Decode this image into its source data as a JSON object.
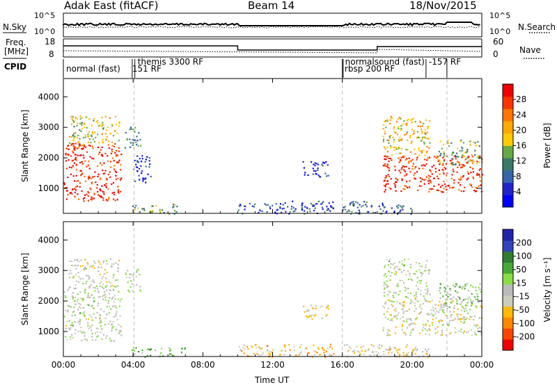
{
  "header": {
    "radar": "Adak East (fitACF)",
    "beam": "Beam 14",
    "date": "18/Nov/2015"
  },
  "strip_labels": {
    "nsky": "N.Sky",
    "nsearch": "N.Search",
    "freq": "Freq.",
    "freq_unit": "[MHz]",
    "nave": "Nave",
    "cpid": "CPID",
    "nsky_ticks": [
      "10^5",
      "10^0"
    ],
    "nsearch_ticks": [
      "10^5",
      "10^0"
    ],
    "freq_ticks": [
      "18",
      "8"
    ],
    "nave_ticks": [
      "60",
      "0"
    ]
  },
  "cpid_segments": [
    {
      "label": "normal (fast)",
      "start_h": 0.0
    },
    {
      "label": "151 RF",
      "start_h": 3.95
    },
    {
      "label": "themis 3300 RF",
      "start_h": 4.1
    },
    {
      "label": "normalsound (fast)",
      "start_h": 16.0
    },
    {
      "label": "rbsp 200 RF",
      "start_h": 16.05
    },
    {
      "label": "-157 RF",
      "start_h": 20.8
    },
    {
      "label": "",
      "start_h": 22.0
    }
  ],
  "colors": {
    "power": [
      "#0000ff",
      "#2222cc",
      "#3366aa",
      "#3a7a6a",
      "#66aa44",
      "#ffcc00",
      "#ffaa00",
      "#ff7700",
      "#ff3300",
      "#ee0000"
    ],
    "velocity": [
      "#2222aa",
      "#3344bb",
      "#2e7d32",
      "#44aa33",
      "#88dd44",
      "#bbbbbb",
      "#ccccbb",
      "#ffbb00",
      "#ff8800",
      "#ff4400",
      "#ee0000"
    ]
  },
  "power_bar": {
    "label": "Power [dB]",
    "ticks": [
      "4",
      "8",
      "12",
      "16",
      "20",
      "24",
      "28"
    ]
  },
  "velocity_bar": {
    "label": "Velocity [m s⁻¹]",
    "ticks": [
      "200",
      "100",
      "50",
      "15",
      "-15",
      "-50",
      "-100",
      "-200"
    ]
  },
  "chart_data": [
    {
      "type": "heatmap",
      "title": "",
      "ylabel": "Slant Range [km]",
      "xlabel": "",
      "y_ticks": [
        "1000",
        "2000",
        "3000",
        "4000"
      ],
      "ylim": [
        180,
        4600
      ],
      "xlim_hours": [
        0,
        24
      ],
      "variable": "power",
      "clim": [
        0,
        30
      ],
      "patches": [
        {
          "t0": 0.0,
          "t1": 3.3,
          "r0": 600,
          "r1": 2500,
          "level": 0.9
        },
        {
          "t0": 0.3,
          "t1": 3.2,
          "r0": 2500,
          "r1": 3400,
          "level": 0.55
        },
        {
          "t0": 3.5,
          "t1": 4.4,
          "r0": 2300,
          "r1": 3100,
          "level": 0.35
        },
        {
          "t0": 3.9,
          "t1": 6.5,
          "r0": 180,
          "r1": 500,
          "level": 0.4
        },
        {
          "t0": 4.0,
          "t1": 5.0,
          "r0": 1200,
          "r1": 2100,
          "level": 0.15
        },
        {
          "t0": 10.0,
          "t1": 15.5,
          "r0": 180,
          "r1": 600,
          "level": 0.2
        },
        {
          "t0": 13.7,
          "t1": 15.2,
          "r0": 1400,
          "r1": 1900,
          "level": 0.15
        },
        {
          "t0": 18.3,
          "t1": 24.0,
          "r0": 900,
          "r1": 2100,
          "level": 0.9
        },
        {
          "t0": 18.3,
          "t1": 21.0,
          "r0": 2100,
          "r1": 3400,
          "level": 0.6
        },
        {
          "t0": 21.5,
          "t1": 23.9,
          "r0": 1800,
          "r1": 2600,
          "level": 0.45
        },
        {
          "t0": 16.0,
          "t1": 20.0,
          "r0": 180,
          "r1": 600,
          "level": 0.25
        }
      ]
    },
    {
      "type": "heatmap",
      "title": "",
      "ylabel": "Slant Range [km]",
      "xlabel": "Time UT",
      "y_ticks": [
        "1000",
        "2000",
        "3000",
        "4000"
      ],
      "ylim": [
        180,
        4600
      ],
      "xlim_hours": [
        0,
        24
      ],
      "x_ticks": [
        "00:00",
        "04:00",
        "08:00",
        "12:00",
        "16:00",
        "20:00",
        "00:00"
      ],
      "variable": "velocity",
      "clim": [
        -200,
        200
      ],
      "patches": [
        {
          "t0": 0.0,
          "t1": 3.3,
          "r0": 700,
          "r1": 2500,
          "level": 0.5
        },
        {
          "t0": 0.3,
          "t1": 3.2,
          "r0": 2500,
          "r1": 3400,
          "level": 0.55
        },
        {
          "t0": 3.5,
          "t1": 4.4,
          "r0": 2300,
          "r1": 3100,
          "level": 0.52
        },
        {
          "t0": 3.9,
          "t1": 7.0,
          "r0": 180,
          "r1": 500,
          "level": 0.38
        },
        {
          "t0": 10.0,
          "t1": 15.5,
          "r0": 180,
          "r1": 600,
          "level": 0.68
        },
        {
          "t0": 13.7,
          "t1": 15.2,
          "r0": 1400,
          "r1": 1900,
          "level": 0.6
        },
        {
          "t0": 18.3,
          "t1": 24.0,
          "r0": 900,
          "r1": 2100,
          "level": 0.55
        },
        {
          "t0": 18.3,
          "t1": 21.0,
          "r0": 2100,
          "r1": 3400,
          "level": 0.5
        },
        {
          "t0": 21.5,
          "t1": 23.9,
          "r0": 1800,
          "r1": 2600,
          "level": 0.42
        },
        {
          "t0": 16.0,
          "t1": 21.0,
          "r0": 180,
          "r1": 600,
          "level": 0.6
        }
      ]
    }
  ]
}
